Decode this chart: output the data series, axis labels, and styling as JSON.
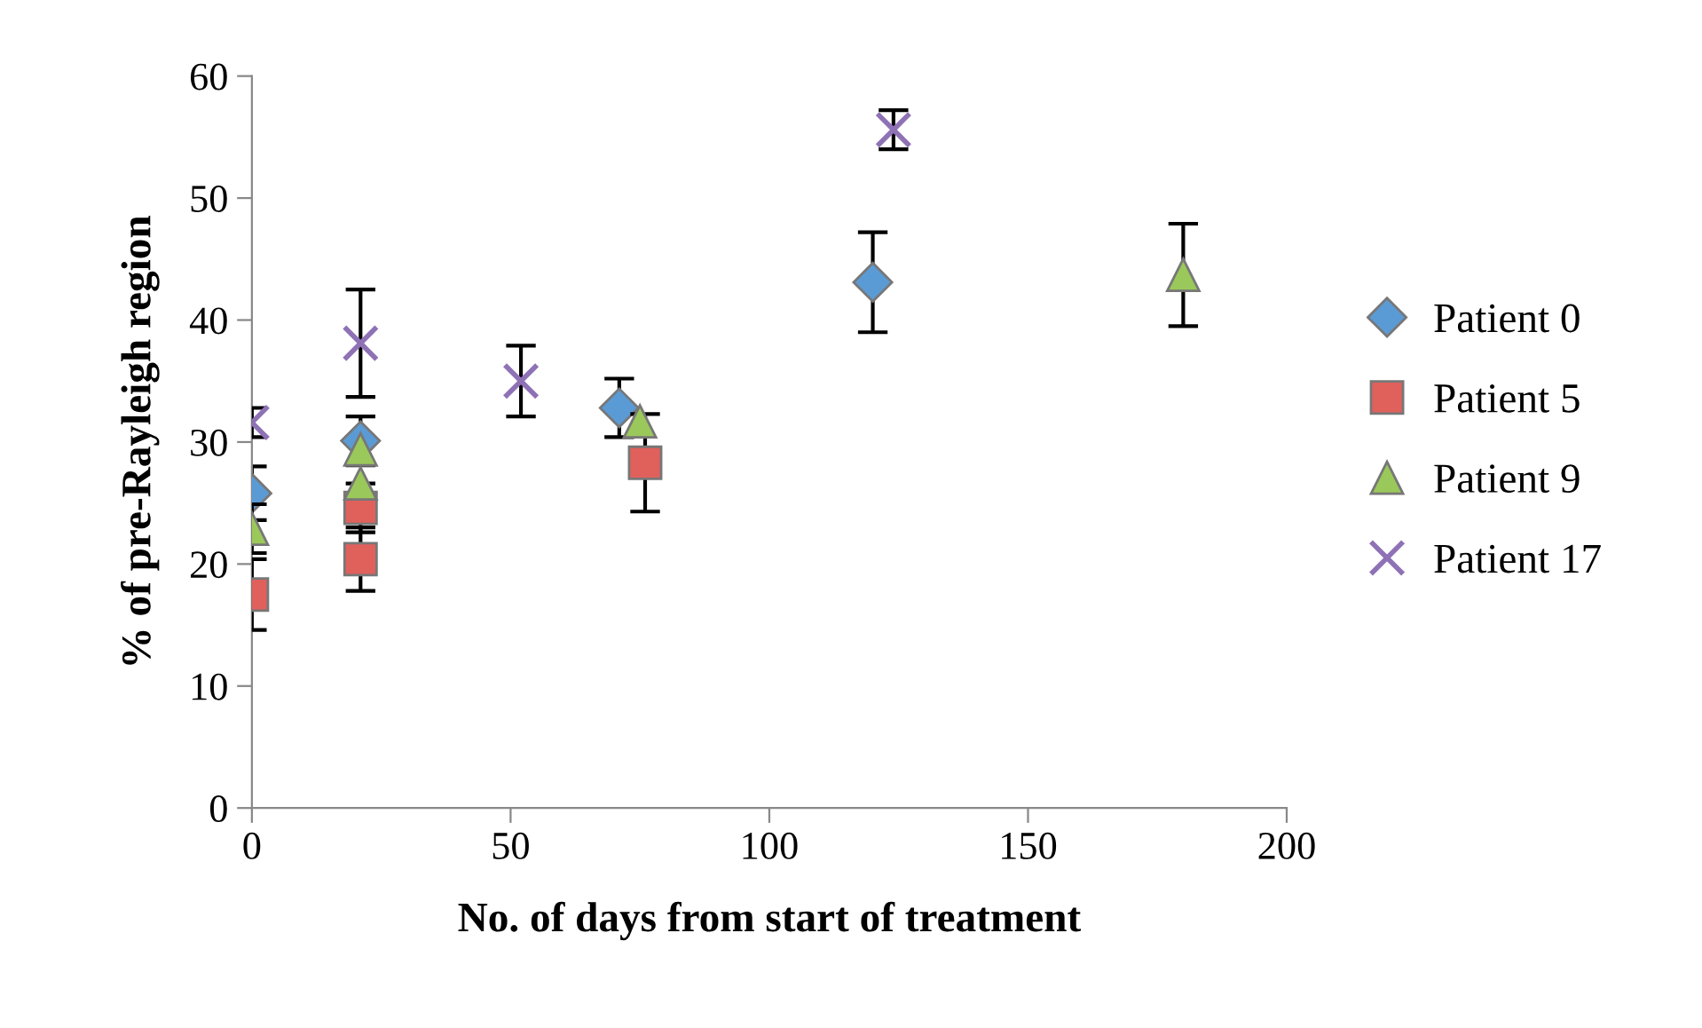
{
  "chart_data": {
    "type": "scatter",
    "xlabel": "No. of days from start of treatment",
    "ylabel": "% of pre-Rayleigh region",
    "xlim": [
      0,
      200
    ],
    "xticks": [
      0,
      50,
      100,
      150,
      200
    ],
    "ylim": [
      0,
      60
    ],
    "yticks": [
      0,
      10,
      20,
      30,
      40,
      50,
      60
    ],
    "grid": false,
    "legend": "right",
    "series": [
      {
        "name": "Patient 0",
        "color": "#5b9bd5",
        "marker": "diamond",
        "x": [
          0,
          21,
          71,
          120
        ],
        "values": [
          25.8,
          30.1,
          32.8,
          43.1
        ],
        "errors": [
          2.2,
          2.0,
          2.4,
          4.1
        ]
      },
      {
        "name": "Patient 5",
        "color": "#e0605c",
        "marker": "square",
        "x": [
          0,
          21,
          21,
          76
        ],
        "values": [
          17.5,
          24.6,
          20.4,
          28.3
        ],
        "errors": [
          2.9,
          2.0,
          2.6,
          4.0
        ]
      },
      {
        "name": "Patient 9",
        "color": "#9bc85a",
        "marker": "triangle",
        "x": [
          0,
          21,
          21,
          75,
          180
        ],
        "values": [
          22.9,
          29.4,
          26.6,
          31.7,
          43.7
        ],
        "errors": [
          2.0,
          null,
          null,
          null,
          4.2
        ]
      },
      {
        "name": "Patient 17",
        "color": "#8e72b5",
        "marker": "cross",
        "x": [
          0,
          21,
          52,
          124
        ],
        "values": [
          31.6,
          38.1,
          35.0,
          55.6
        ],
        "errors": [
          1.2,
          4.4,
          2.9,
          1.6
        ]
      }
    ]
  }
}
